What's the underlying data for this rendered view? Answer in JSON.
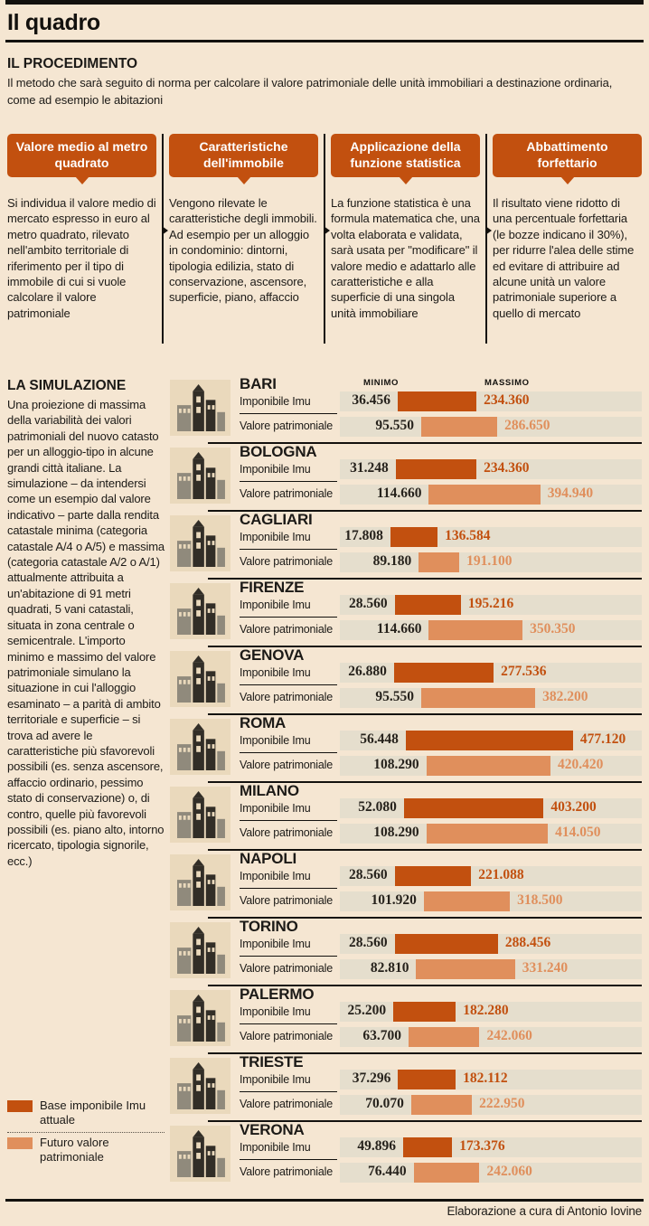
{
  "page": {
    "title": "Il quadro",
    "footer_credit": "Elaborazione a cura di Antonio Iovine"
  },
  "procedure": {
    "heading": "IL PROCEDIMENTO",
    "intro": "Il metodo che sarà seguito di norma per calcolare il valore patrimoniale delle unità immobiliari a destinazione ordinaria, come ad esempio le abitazioni",
    "steps": [
      {
        "title": "Valore medio al metro quadrato",
        "body": "Si individua il valore medio di mercato espresso in euro al metro quadrato, rilevato nell'ambito territoriale di riferimento per il tipo di immobile di cui si vuole calcolare il valore patrimoniale"
      },
      {
        "title": "Caratteristiche dell'immobile",
        "body": "Vengono rilevate le caratteristiche degli immobili. Ad esempio per un alloggio in condominio: dintorni, tipologia edilizia, stato di conservazione, ascensore, superficie, piano, affaccio"
      },
      {
        "title": "Applicazione della funzione statistica",
        "body": "La funzione statistica è una formula matematica che, una volta elaborata e validata, sarà usata per \"modificare\" il valore medio e adattarlo alle caratteristiche e alla superficie di una singola unità immobiliare"
      },
      {
        "title": "Abbattimento forfettario",
        "body": "Il risultato viene ridotto di una percentuale forfettaria (le bozze indicano il 30%), per ridurre l'alea delle stime ed evitare di attribuire ad alcune unità un valore patrimoniale superiore a quello di mercato"
      }
    ]
  },
  "simulation": {
    "heading": "LA SIMULAZIONE",
    "body": "Una proiezione di massima della variabilità dei valori patrimoniali del nuovo catasto per un alloggio-tipo in alcune grandi città italiane. La simulazione – da intendersi come un esempio dal valore indicativo – parte dalla rendita catastale minima (categoria catastale A/4 o A/5) e massima (categoria catastale A/2 o A/1) attualmente attribuita a un'abitazione di 91 metri quadrati, 5 vani catastali, situata in zona centrale o semicentrale. L'importo minimo e massimo del valore patrimoniale simulano la situazione in cui l'alloggio esaminato – a parità di ambito territoriale e superficie – si trova ad avere le caratteristiche più sfavorevoli possibili (es. senza ascensore, affaccio ordinario, pessimo stato di conservazione) o, di contro, quelle più favorevoli possibili (es. piano alto, intorno ricercato, tipologia signorile, ecc.)",
    "legend": [
      {
        "label": "Base imponibile Imu attuale",
        "color": "#c2500f"
      },
      {
        "label": "Futuro valore patrimoniale",
        "color": "#e08f5c"
      }
    ]
  },
  "chart_data": {
    "type": "bar",
    "title": "LA SIMULAZIONE",
    "columns": {
      "min": "MINIMO",
      "max": "MASSIMO"
    },
    "row_labels": {
      "imu": "Imponibile Imu",
      "valore": "Valore patrimoniale"
    },
    "legend": [
      "Base imponibile Imu attuale",
      "Futuro valore patrimoniale"
    ],
    "value_scale": {
      "unit": "euro",
      "axis_hidden": true
    },
    "cities": [
      {
        "name": "BARI",
        "imu": {
          "min": "36.456",
          "max": "234.360"
        },
        "valore": {
          "min": "95.550",
          "max": "286.650"
        }
      },
      {
        "name": "BOLOGNA",
        "imu": {
          "min": "31.248",
          "max": "234.360"
        },
        "valore": {
          "min": "114.660",
          "max": "394.940"
        }
      },
      {
        "name": "CAGLIARI",
        "imu": {
          "min": "17.808",
          "max": "136.584"
        },
        "valore": {
          "min": "89.180",
          "max": "191.100"
        }
      },
      {
        "name": "FIRENZE",
        "imu": {
          "min": "28.560",
          "max": "195.216"
        },
        "valore": {
          "min": "114.660",
          "max": "350.350"
        }
      },
      {
        "name": "GENOVA",
        "imu": {
          "min": "26.880",
          "max": "277.536"
        },
        "valore": {
          "min": "95.550",
          "max": "382.200"
        }
      },
      {
        "name": "ROMA",
        "imu": {
          "min": "56.448",
          "max": "477.120"
        },
        "valore": {
          "min": "108.290",
          "max": "420.420"
        }
      },
      {
        "name": "MILANO",
        "imu": {
          "min": "52.080",
          "max": "403.200"
        },
        "valore": {
          "min": "108.290",
          "max": "414.050"
        }
      },
      {
        "name": "NAPOLI",
        "imu": {
          "min": "28.560",
          "max": "221.088"
        },
        "valore": {
          "min": "101.920",
          "max": "318.500"
        }
      },
      {
        "name": "TORINO",
        "imu": {
          "min": "28.560",
          "max": "288.456"
        },
        "valore": {
          "min": "82.810",
          "max": "331.240"
        }
      },
      {
        "name": "PALERMO",
        "imu": {
          "min": "25.200",
          "max": "182.280"
        },
        "valore": {
          "min": "63.700",
          "max": "242.060"
        }
      },
      {
        "name": "TRIESTE",
        "imu": {
          "min": "37.296",
          "max": "182.112"
        },
        "valore": {
          "min": "70.070",
          "max": "222.950"
        }
      },
      {
        "name": "VERONA",
        "imu": {
          "min": "49.896",
          "max": "173.376"
        },
        "valore": {
          "min": "76.440",
          "max": "242.060"
        }
      }
    ]
  }
}
